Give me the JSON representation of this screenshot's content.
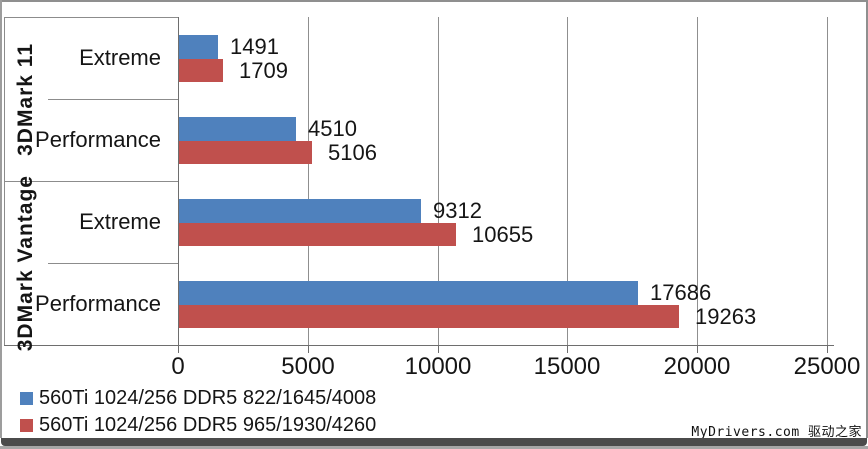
{
  "watermark": "MyDrivers.com 驱动之家",
  "colors": {
    "series1": "#4F81BD",
    "series2": "#C0504D",
    "axis": "#6E6E6E",
    "gridline": "#8F8F8F",
    "background": "#FFFFFF"
  },
  "chart_data": {
    "type": "bar",
    "orientation": "horizontal",
    "groups": [
      {
        "label": "3DMark 11",
        "rows": [
          0,
          1
        ]
      },
      {
        "label": "3DMark Vantage",
        "rows": [
          2,
          3
        ]
      }
    ],
    "categories": [
      "Extreme",
      "Performance",
      "Extreme",
      "Performance"
    ],
    "series": [
      {
        "name": "560Ti 1024/256 DDR5 822/1645/4008",
        "color": "#4F81BD",
        "values": [
          1491,
          4510,
          9312,
          17686
        ]
      },
      {
        "name": "560Ti 1024/256 DDR5 965/1930/4260",
        "color": "#C0504D",
        "values": [
          1709,
          5106,
          10655,
          19263
        ]
      }
    ],
    "xlim": [
      0,
      25000
    ],
    "x_ticks": [
      0,
      5000,
      10000,
      15000,
      20000,
      25000
    ],
    "grid": true,
    "data_labels": true,
    "legend_position": "bottom-left",
    "title": ""
  }
}
